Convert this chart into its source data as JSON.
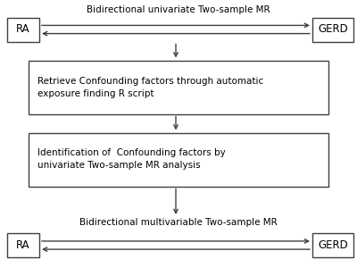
{
  "bg_color": "#ffffff",
  "box_color": "#ffffff",
  "box_edge_color": "#404040",
  "arrow_color": "#404040",
  "text_color": "#000000",
  "title_top": "Bidirectional univariate Two-sample MR",
  "title_bottom": "Bidirectional multivariable Two-sample MR",
  "box1_text": "Retrieve Confounding factors through automatic\nexposure finding R script",
  "box2_text": "Identification of  Confounding factors by\nunivariate Two-sample MR analysis",
  "label_left": "RA",
  "label_right": "GERD",
  "fontsize": 7.5,
  "label_fontsize": 8.5,
  "box1_text_align": "left",
  "box2_text_align": "left"
}
